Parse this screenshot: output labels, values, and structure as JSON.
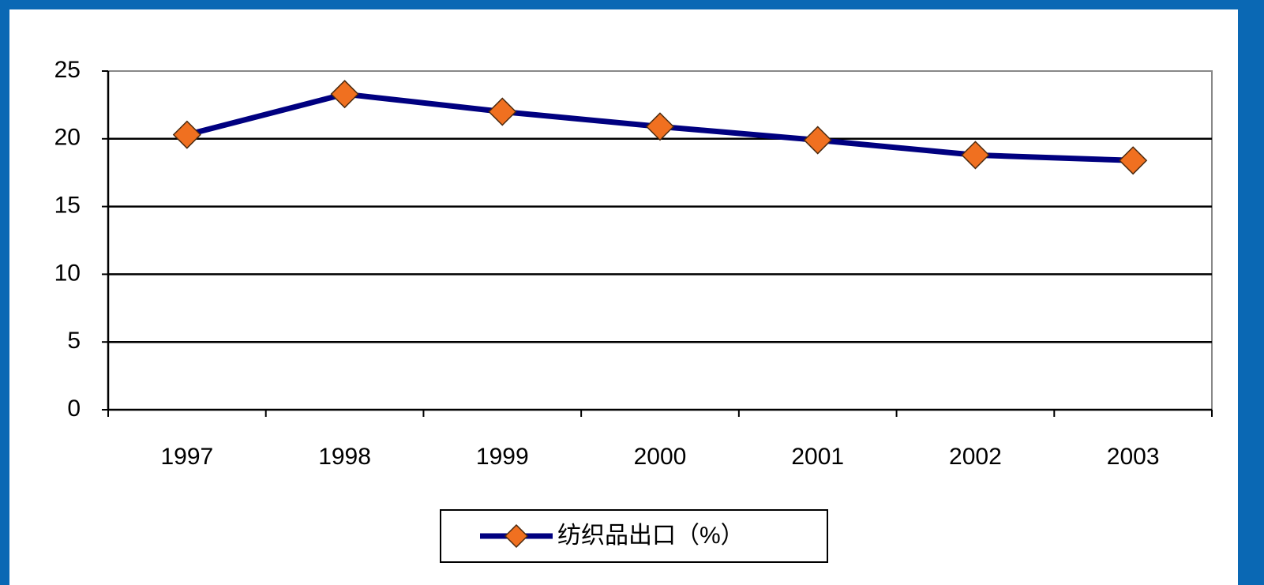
{
  "chart_data": {
    "type": "line",
    "categories": [
      "1997",
      "1998",
      "1999",
      "2000",
      "2001",
      "2002",
      "2003"
    ],
    "series": [
      {
        "name": "纺织品出口（%）",
        "color": "#000080",
        "marker_color": "#f07020",
        "values": [
          20.3,
          23.3,
          22.0,
          20.9,
          19.9,
          18.8,
          18.4
        ]
      }
    ],
    "ylim": [
      0,
      25
    ],
    "yticks": [
      0,
      5,
      10,
      15,
      20,
      25
    ],
    "grid": true,
    "legend": "bottom"
  }
}
